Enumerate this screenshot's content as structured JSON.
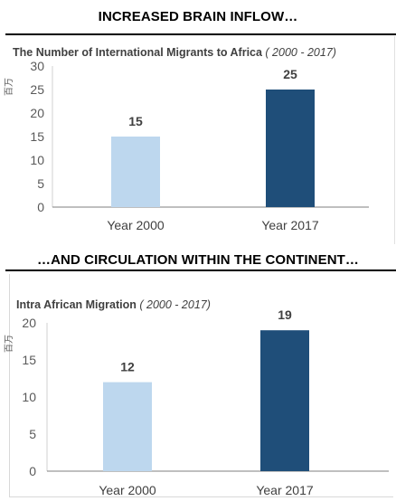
{
  "headlines": {
    "top": "INCREASED BRAIN INFLOW…",
    "bottom": "…AND CIRCULATION WITHIN THE CONTINENT…"
  },
  "chart_data": [
    {
      "type": "bar",
      "title": "The Number of International Migrants to Africa",
      "title_suffix": "( 2000 - 2017)",
      "ylabel": "百万",
      "categories": [
        "Year 2000",
        "Year 2017"
      ],
      "values": [
        15,
        25
      ],
      "data_labels": [
        "15",
        "25"
      ],
      "ylim": [
        0,
        30
      ],
      "yticks": [
        0,
        5,
        10,
        15,
        20,
        25,
        30
      ],
      "bar_colors": [
        "#bdd7ee",
        "#1f4e79"
      ],
      "grid": false
    },
    {
      "type": "bar",
      "title": "Intra African Migration",
      "title_suffix": "( 2000 - 2017)",
      "ylabel": "百万",
      "categories": [
        "Year 2000",
        "Year 2017"
      ],
      "values": [
        12,
        19
      ],
      "data_labels": [
        "12",
        "19"
      ],
      "ylim": [
        0,
        20
      ],
      "yticks": [
        0,
        5,
        10,
        15,
        20
      ],
      "bar_colors": [
        "#bdd7ee",
        "#1f4e79"
      ],
      "grid": false
    }
  ]
}
